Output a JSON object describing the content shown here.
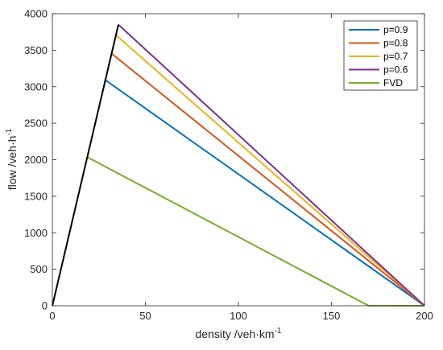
{
  "chart_data": {
    "type": "line",
    "title": "",
    "xlabel": {
      "base": "density /veh·km",
      "sup": "-1"
    },
    "ylabel": {
      "base": "flow /veh·h",
      "sup": "-1"
    },
    "xlim": [
      0,
      200
    ],
    "ylim": [
      0,
      4000
    ],
    "xticks": [
      0,
      50,
      100,
      150,
      200
    ],
    "yticks": [
      0,
      500,
      1000,
      1500,
      2000,
      2500,
      3000,
      3500,
      4000
    ],
    "grid": false,
    "legend_position": "top-right",
    "series": [
      {
        "name": "p=0.9",
        "color": "#0072BD",
        "points": [
          [
            28,
            3100
          ],
          [
            200,
            0
          ]
        ]
      },
      {
        "name": "p=0.8",
        "color": "#D95319",
        "points": [
          [
            31.5,
            3460
          ],
          [
            200,
            0
          ]
        ]
      },
      {
        "name": "p=0.7",
        "color": "#EDB120",
        "points": [
          [
            34,
            3710
          ],
          [
            200,
            0
          ]
        ]
      },
      {
        "name": "p=0.6",
        "color": "#7E2F8E",
        "points": [
          [
            35.5,
            3850
          ],
          [
            200,
            0
          ]
        ]
      },
      {
        "name": "FVD",
        "color": "#77AC30",
        "points": [
          [
            18.5,
            2040
          ],
          [
            170,
            0
          ],
          [
            200,
            0
          ]
        ]
      }
    ],
    "free_flow_branch": {
      "color": "#000000",
      "points": [
        [
          0,
          0
        ],
        [
          35.5,
          3850
        ]
      ]
    }
  }
}
